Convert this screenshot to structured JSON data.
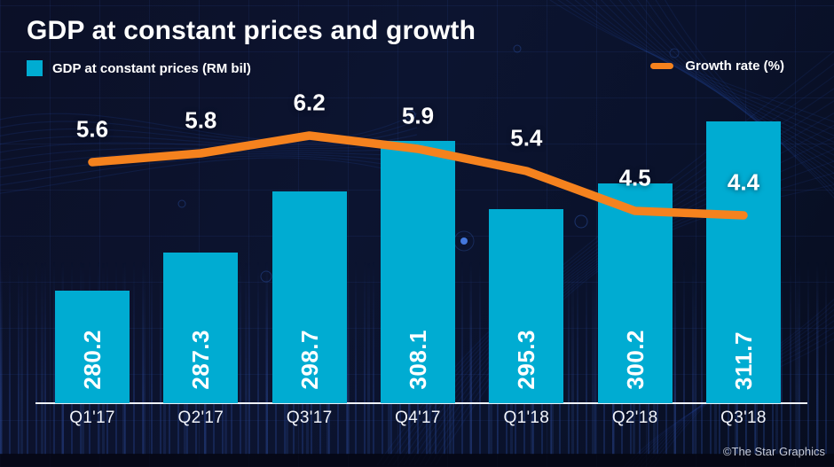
{
  "header": {
    "title": "GDP at constant prices and growth"
  },
  "legend": {
    "bars_label": "GDP at constant prices (RM bil)",
    "line_label": "Growth rate (%)"
  },
  "footer": {
    "credit": "©The Star Graphics"
  },
  "colors": {
    "bar": "#00ACD2",
    "line": "#F5821E",
    "background": "#0B1027",
    "text": "#FFFFFF"
  },
  "chart_data": {
    "type": "bar",
    "title": "GDP at constant prices and growth",
    "categories": [
      "Q1'17",
      "Q2'17",
      "Q3'17",
      "Q4'17",
      "Q1'18",
      "Q2'18",
      "Q3'18"
    ],
    "series": [
      {
        "name": "GDP at constant prices (RM bil)",
        "type": "bar",
        "values": [
          280.2,
          287.3,
          298.7,
          308.1,
          295.3,
          300.2,
          311.7
        ]
      },
      {
        "name": "Growth rate (%)",
        "type": "line",
        "values": [
          5.6,
          5.8,
          6.2,
          5.9,
          5.4,
          4.5,
          4.4
        ]
      }
    ],
    "legend_position": "top",
    "grid": false,
    "value_labels": "inside-bars-rotated and above-line-points"
  }
}
